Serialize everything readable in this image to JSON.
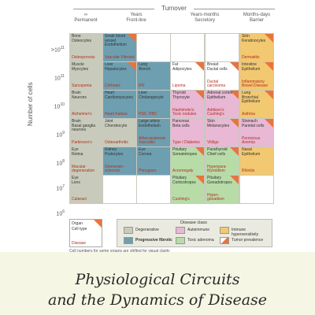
{
  "top_label": "Turnover",
  "columns": [
    {
      "line1": "∞",
      "line2": "Permanent"
    },
    {
      "line1": "Years",
      "line2": "Front-line"
    },
    {
      "line1": "Years-months",
      "line2": "Secretory"
    },
    {
      "line1": "Months-days",
      "line2": "Barrier"
    }
  ],
  "y_axis_label": "Number of cells",
  "y_ticks": [
    {
      "base": ">10",
      "exp": "11"
    },
    {
      "base": "10",
      "exp": "11"
    },
    {
      "base": "10",
      "exp": "10"
    },
    {
      "base": "10",
      "exp": "9"
    },
    {
      "base": "10",
      "exp": "8"
    },
    {
      "base": "10",
      "exp": "7"
    },
    {
      "base": "10",
      "exp": "6"
    }
  ],
  "colors": {
    "degenerative": "#c8cbbb",
    "fibrotic": "#6d9fb0",
    "autoimmune": "#e8b8d4",
    "toxic": "#b8dca8",
    "hypersensitivity": "#f2c870",
    "tumor": "#e8743c"
  },
  "cells": [
    {
      "org": "Bone\nOsteocytes",
      "dis": "Osteoporosis",
      "cls": "degenerative",
      "tumor": false
    },
    {
      "org": "Small blood\nvessel\nEndothelium",
      "dis": "Vascular Fibrosis",
      "cls": "fibrotic",
      "tumor": true
    },
    {
      "org": "",
      "dis": "",
      "cls": "none",
      "tumor": false
    },
    {
      "org": "",
      "dis": "",
      "cls": "none",
      "tumor": false
    },
    {
      "org": "",
      "dis": "",
      "cls": "none",
      "tumor": false
    },
    {
      "org": "Skin\nKeratinocytes",
      "dis": "Dermatitis",
      "cls": "hypersensitivity",
      "tumor": true
    },
    {
      "org": "Muscle\nMyocytes",
      "dis": "Sarcopenia",
      "cls": "degenerative",
      "tumor": false
    },
    {
      "org": "Liver\nHepatocytes",
      "dis": "Cirrhosis",
      "cls": "fibrotic",
      "tumor": true
    },
    {
      "org": "Lung\nAlveoli",
      "dis": "IPF",
      "cls": "fibrotic",
      "tumor": false
    },
    {
      "org": "Fat\nAdipocytes",
      "dis": "Lipoma",
      "cls": "none",
      "tumor": true
    },
    {
      "org": "Breast\nDuctal cells",
      "dis": "Ductal\ncarcinoma",
      "cls": "none",
      "tumor": true
    },
    {
      "org": "Intestine\nEpithelium",
      "dis": "Inflammatory\nBowel Disease",
      "cls": "hypersensitivity",
      "tumor": true
    },
    {
      "org": "Brain\nNeurons",
      "dis": "Alzheimer's",
      "cls": "degenerative",
      "tumor": false
    },
    {
      "org": "Heart\nCardiomyocytes",
      "dis": "Heart Failure",
      "cls": "fibrotic",
      "tumor": false
    },
    {
      "org": "Liver\nCholangiocyte",
      "dis": "PSC, PBC",
      "cls": "fibrotic",
      "tumor": false
    },
    {
      "org": "Thyroid\nThyrocyte",
      "dis": "Hashimoto's\nToxic nodules",
      "cls": "autoimmune",
      "tumor": true
    },
    {
      "org": "Adrenal cortex\nEpithelium",
      "dis": "Addison's\nCushing's",
      "cls": "autoimmune",
      "tumor": true
    },
    {
      "org": "Lung\nBronchial\nEpithelium",
      "dis": "Asthma",
      "cls": "hypersensitivity",
      "tumor": true
    },
    {
      "org": "Brain\nBasal ganglia\nneurons",
      "dis": "Parkinson's",
      "cls": "degenerative",
      "tumor": false
    },
    {
      "org": "Joint\nChondrocyte",
      "dis": "Osteoarthritis",
      "cls": "degenerative",
      "tumor": false
    },
    {
      "org": "Large artery\nEndothelium",
      "dis": "Atherosclerosis\nVasculitis",
      "cls": "fibrotic",
      "tumor": false
    },
    {
      "org": "Pancreas\nBeta cells",
      "dis": "Type I Diabetes",
      "cls": "autoimmune",
      "tumor": false
    },
    {
      "org": "Skin\nMelanocytes",
      "dis": "Vitiligo",
      "cls": "autoimmune",
      "tumor": true
    },
    {
      "org": "Stomach\nParietal cells",
      "dis": "Pernicious\nAnemia",
      "cls": "autoimmune",
      "tumor": true
    },
    {
      "org": "Eye\nRetina",
      "dis": "Macular\ndegeneration",
      "cls": "degenerative",
      "tumor": false
    },
    {
      "org": "Kidney\nPodocytes",
      "dis": "Glomerulo-\nsclerosis",
      "cls": "fibrotic",
      "tumor": false
    },
    {
      "org": "Eye\nCornea",
      "dis": "Pterygium",
      "cls": "fibrotic",
      "tumor": false
    },
    {
      "org": "Pituitary\nSomatotropes",
      "dis": "Acromegaly",
      "cls": "toxic",
      "tumor": true
    },
    {
      "org": "Parathyroid\nChief cells",
      "dis": "Hyperpara-\nthyroidism",
      "cls": "toxic",
      "tumor": true
    },
    {
      "org": "Nasal\nEpithelium",
      "dis": "Rhinitis",
      "cls": "hypersensitivity",
      "tumor": false
    },
    {
      "org": "Eye\nLens",
      "dis": "Cataract",
      "cls": "degenerative",
      "tumor": false
    },
    {
      "org": "",
      "dis": "",
      "cls": "none",
      "tumor": false
    },
    {
      "org": "",
      "dis": "",
      "cls": "none",
      "tumor": false
    },
    {
      "org": "Pituitary\nCorticotropes",
      "dis": "Cushing's",
      "cls": "toxic",
      "tumor": true
    },
    {
      "org": "Pituitary\nGonadotropes",
      "dis": "Hyper-\ngonadism",
      "cls": "toxic",
      "tumor": true
    },
    {
      "org": "",
      "dis": "",
      "cls": "none",
      "tumor": false
    }
  ],
  "key": {
    "organ": "Organ",
    "cell_type": "Cell type",
    "disease": "Disease"
  },
  "legend_title": "Disease class",
  "legend": [
    {
      "label": "Degenerative",
      "cls": "degenerative"
    },
    {
      "label": "Autoimmune",
      "cls": "autoimmune"
    },
    {
      "label": "Immune\nhypersensitivity",
      "cls": "hypersensitivity"
    },
    {
      "label": "Progressive fibrotic",
      "cls": "fibrotic"
    },
    {
      "label": "Toxic adenoma",
      "cls": "toxic"
    },
    {
      "label": "Tumor prevalence",
      "cls": "tumor"
    }
  ],
  "footnote": "Cell numbers for some organs are shifted for visual clarity",
  "book_title_line1": "Physiological Circuits",
  "book_title_line2": "and the Dynamics of Disease"
}
